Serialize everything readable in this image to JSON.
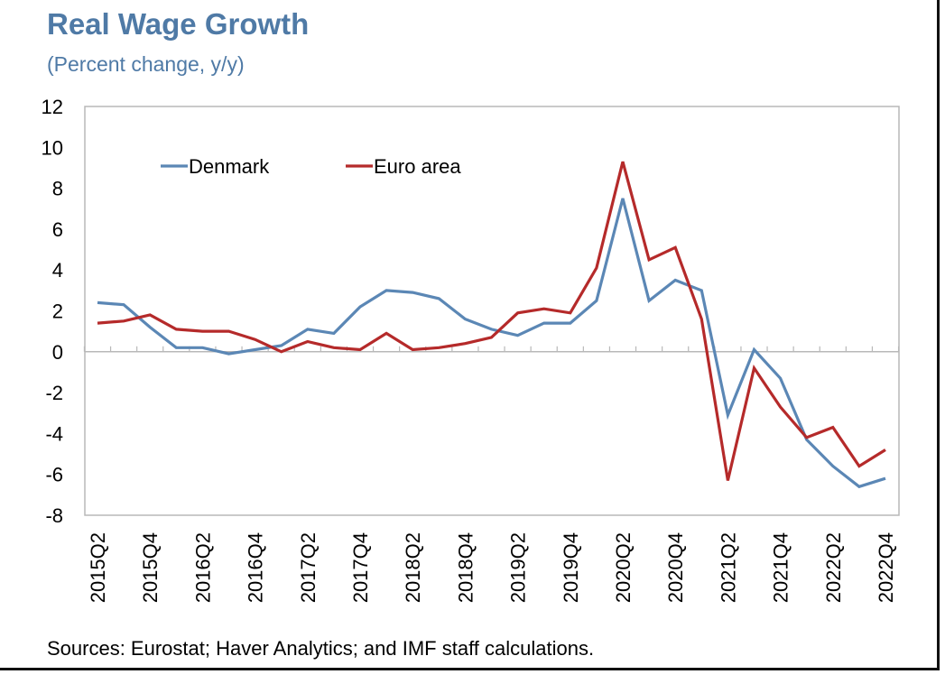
{
  "header": {
    "title": "Real Wage Growth",
    "subtitle": "(Percent change, y/y)"
  },
  "footer": {
    "source": "Sources: Eurostat; Haver Analytics; and IMF staff calculations."
  },
  "chart_data": {
    "type": "line",
    "title": "Real Wage Growth",
    "subtitle": "(Percent change, y/y)",
    "ylim": [
      -8,
      12
    ],
    "yticks": [
      12,
      10,
      8,
      6,
      4,
      2,
      0,
      -2,
      -4,
      -6,
      -8
    ],
    "x": [
      "2015Q2",
      "2015Q3",
      "2015Q4",
      "2016Q1",
      "2016Q2",
      "2016Q3",
      "2016Q4",
      "2017Q1",
      "2017Q2",
      "2017Q3",
      "2017Q4",
      "2018Q1",
      "2018Q2",
      "2018Q3",
      "2018Q4",
      "2019Q1",
      "2019Q2",
      "2019Q3",
      "2019Q4",
      "2020Q1",
      "2020Q2",
      "2020Q3",
      "2020Q4",
      "2021Q1",
      "2021Q2",
      "2021Q3",
      "2021Q4",
      "2022Q1",
      "2022Q2",
      "2022Q3",
      "2022Q4"
    ],
    "xtick_labels": [
      "2015Q2",
      "2015Q4",
      "2016Q2",
      "2016Q4",
      "2017Q2",
      "2017Q4",
      "2018Q2",
      "2018Q4",
      "2019Q2",
      "2019Q4",
      "2020Q2",
      "2020Q4",
      "2021Q2",
      "2021Q4",
      "2022Q2",
      "2022Q4"
    ],
    "grid": false,
    "legend": "top-left, inside plot",
    "series": [
      {
        "name": "Denmark",
        "color": "#5b87b5",
        "values": [
          2.4,
          2.3,
          1.2,
          0.2,
          0.2,
          -0.1,
          0.1,
          0.3,
          1.1,
          0.9,
          2.2,
          3.0,
          2.9,
          2.6,
          1.6,
          1.1,
          0.8,
          1.4,
          1.4,
          2.5,
          7.5,
          2.5,
          3.5,
          3.0,
          -3.1,
          0.1,
          -1.3,
          -4.3,
          -5.6,
          -6.6,
          -6.2
        ]
      },
      {
        "name": "Euro area",
        "color": "#b52a2a",
        "values": [
          1.4,
          1.5,
          1.8,
          1.1,
          1.0,
          1.0,
          0.6,
          0.0,
          0.5,
          0.2,
          0.1,
          0.9,
          0.1,
          0.2,
          0.4,
          0.7,
          1.9,
          2.1,
          1.9,
          4.1,
          9.3,
          4.5,
          5.1,
          1.6,
          -6.3,
          -0.8,
          -2.7,
          -4.2,
          -3.7,
          -5.6,
          -4.8
        ]
      }
    ]
  }
}
